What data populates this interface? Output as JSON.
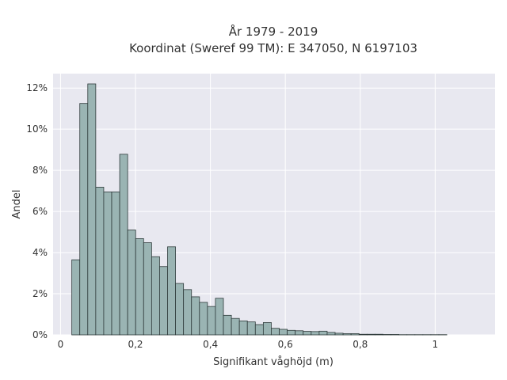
{
  "chart_data": {
    "type": "bar",
    "title": "År 1979 - 2019",
    "subtitle": "Koordinat (Sweref 99 TM): E 347050, N 6197103",
    "xlabel": "Signifikant våghöjd (m)",
    "ylabel": "Andel",
    "xlim": [
      -0.02,
      1.16
    ],
    "ylim": [
      0,
      0.127
    ],
    "grid": true,
    "background": "#e8e8f0",
    "bar_color": "#9ab4b3",
    "edge_color": "#2f3b3b",
    "x_ticks": [
      {
        "value": 0,
        "label": "0"
      },
      {
        "value": 0.2,
        "label": "0,2"
      },
      {
        "value": 0.4,
        "label": "0,4"
      },
      {
        "value": 0.6,
        "label": "0,6"
      },
      {
        "value": 0.8,
        "label": "0,8"
      },
      {
        "value": 1.0,
        "label": "1"
      }
    ],
    "y_ticks": [
      {
        "value": 0,
        "label": "0%"
      },
      {
        "value": 0.02,
        "label": "2%"
      },
      {
        "value": 0.04,
        "label": "4%"
      },
      {
        "value": 0.06,
        "label": "6%"
      },
      {
        "value": 0.08,
        "label": "8%"
      },
      {
        "value": 0.1,
        "label": "10%"
      },
      {
        "value": 0.12,
        "label": "12%"
      }
    ],
    "bin_start": 0.03,
    "bin_width": 0.0213,
    "values": [
      0.0365,
      0.1125,
      0.122,
      0.0718,
      0.0695,
      0.0695,
      0.0878,
      0.051,
      0.0468,
      0.0448,
      0.038,
      0.0332,
      0.0428,
      0.025,
      0.022,
      0.0185,
      0.0158,
      0.0138,
      0.0178,
      0.0095,
      0.008,
      0.0068,
      0.0063,
      0.005,
      0.006,
      0.0032,
      0.0027,
      0.0022,
      0.002,
      0.0017,
      0.0016,
      0.0018,
      0.0012,
      0.0008,
      0.0006,
      0.0006,
      0.0003,
      0.0003,
      0.0003,
      0.0002,
      0.0002,
      0.0001,
      0.0001,
      0.0001,
      0.0001,
      0.0001,
      0.0001
    ]
  }
}
